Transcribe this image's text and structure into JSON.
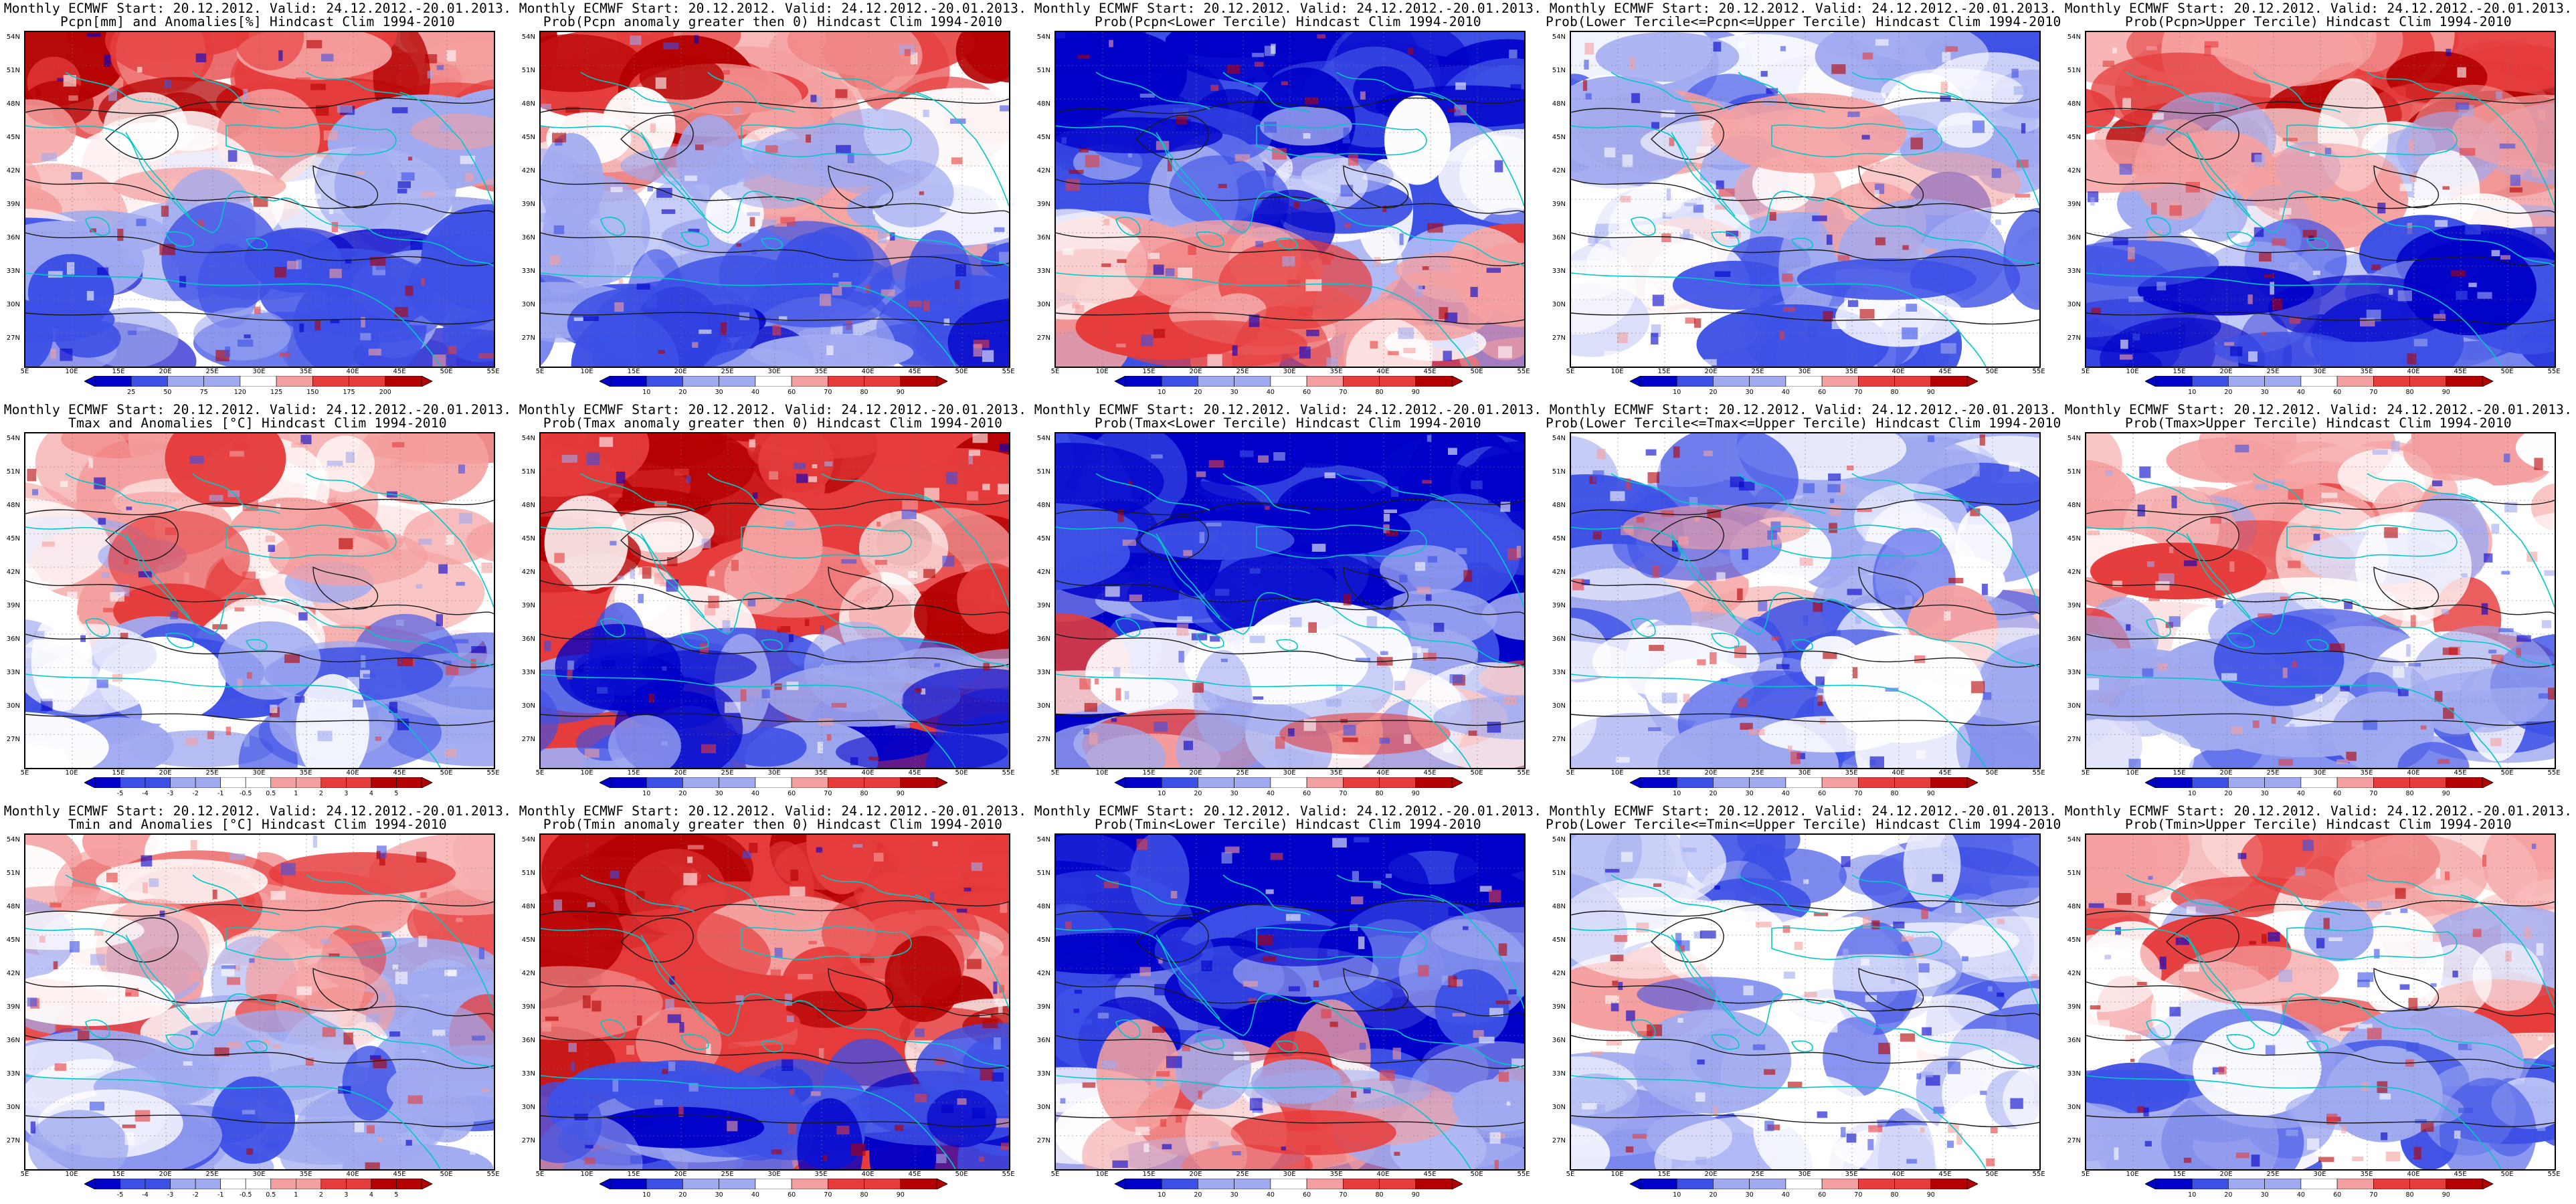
{
  "figure": {
    "title_prefix": "Monthly ECMWF Start: 20.12.2012. Valid: 24.12.2012.-20.01.2013.",
    "lat_labels": [
      "54N",
      "51N",
      "48N",
      "45N",
      "42N",
      "39N",
      "36N",
      "33N",
      "30N",
      "27N"
    ],
    "lon_labels": [
      "5E",
      "10E",
      "15E",
      "20E",
      "25E",
      "30E",
      "35E",
      "40E",
      "45E",
      "50E",
      "55E"
    ]
  },
  "colorbars": {
    "pcpn_anom": [
      "25",
      "50",
      "75",
      "120",
      "150",
      "175",
      "200"
    ],
    "pcpn_anom_vis": [
      "25",
      "50",
      "75",
      "120",
      "125",
      "150",
      "175",
      "200"
    ],
    "prob": [
      "10",
      "20",
      "30",
      "40",
      "60",
      "70",
      "80",
      "90"
    ],
    "temp_anom": [
      "-5",
      "-4",
      "-3",
      "-2",
      "-1",
      "-0.5",
      "0.5",
      "1",
      "2",
      "3",
      "4",
      "5"
    ]
  },
  "colors": {
    "blue_dark": "#0000c8",
    "blue_mid": "#3c50e6",
    "blue_light": "#a0aaf0",
    "white": "#ffffff",
    "red_light": "#f5a0a0",
    "red_mid": "#e63c3c",
    "red_dark": "#b40000",
    "contour": "#1a1a1a",
    "coast": "#00c8c8"
  },
  "panels": [
    {
      "id": "r1c1",
      "subtitle": "Pcpn[mm] and Anomalies[%] Hindcast Clim 1994-2010",
      "bar": "pcpn_anom_vis",
      "theme": "warm_north"
    },
    {
      "id": "r1c2",
      "subtitle": "Prob(Pcpn anomaly greater then 0) Hindcast Clim 1994-2010",
      "bar": "prob",
      "theme": "warm_north"
    },
    {
      "id": "r1c3",
      "subtitle": "Prob(Pcpn<Lower Tercile) Hindcast Clim 1994-2010",
      "bar": "prob",
      "theme": "cold_north"
    },
    {
      "id": "r1c4",
      "subtitle": "Prob(Lower Tercile<=Pcpn<=Upper Tercile) Hindcast Clim 1994-2010",
      "bar": "prob",
      "theme": "mixed"
    },
    {
      "id": "r1c5",
      "subtitle": "Prob(Pcpn>Upper Tercile) Hindcast Clim 1994-2010",
      "bar": "prob",
      "theme": "warm_north"
    },
    {
      "id": "r2c1",
      "subtitle": "Tmax and Anomalies [°C] Hindcast Clim 1994-2010",
      "bar": "temp_anom",
      "theme": "warm_mild"
    },
    {
      "id": "r2c2",
      "subtitle": "Prob(Tmax anomaly greater then 0) Hindcast Clim 1994-2010",
      "bar": "prob",
      "theme": "warm_strong"
    },
    {
      "id": "r2c3",
      "subtitle": "Prob(Tmax<Lower Tercile) Hindcast Clim 1994-2010",
      "bar": "prob",
      "theme": "cold_strong"
    },
    {
      "id": "r2c4",
      "subtitle": "Prob(Lower Tercile<=Tmax<=Upper Tercile) Hindcast Clim 1994-2010",
      "bar": "prob",
      "theme": "mixed"
    },
    {
      "id": "r2c5",
      "subtitle": "Prob(Tmax>Upper Tercile) Hindcast Clim 1994-2010",
      "bar": "prob",
      "theme": "warm_mild"
    },
    {
      "id": "r3c1",
      "subtitle": "Tmin and Anomalies [°C] Hindcast Clim 1994-2010",
      "bar": "temp_anom",
      "theme": "warm_mild"
    },
    {
      "id": "r3c2",
      "subtitle": "Prob(Tmin anomaly greater then 0) Hindcast Clim 1994-2010",
      "bar": "prob",
      "theme": "warm_strong"
    },
    {
      "id": "r3c3",
      "subtitle": "Prob(Tmin<Lower Tercile) Hindcast Clim 1994-2010",
      "bar": "prob",
      "theme": "cold_strong"
    },
    {
      "id": "r3c4",
      "subtitle": "Prob(Lower Tercile<=Tmin<=Upper Tercile) Hindcast Clim 1994-2010",
      "bar": "prob",
      "theme": "mixed"
    },
    {
      "id": "r3c5",
      "subtitle": "Prob(Tmin>Upper Tercile) Hindcast Clim 1994-2010",
      "bar": "prob",
      "theme": "warm_mild"
    }
  ]
}
